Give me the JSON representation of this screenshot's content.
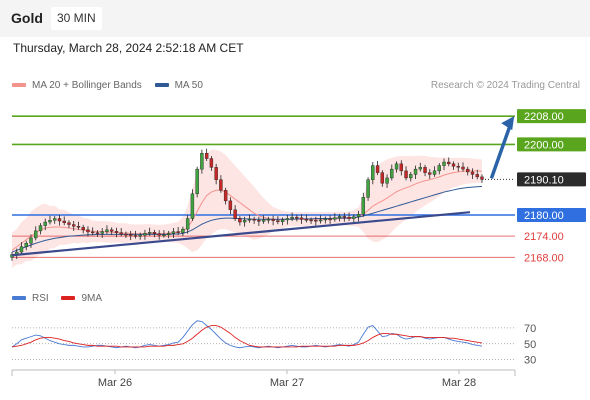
{
  "header": {
    "symbol": "Gold",
    "timeframe": "30 MIN",
    "datetime": "Thursday, March 28, 2024 2:52:18 AM CET"
  },
  "legend": {
    "items": [
      {
        "label": "MA 20 + Bollinger Bands",
        "color": "#f4928c"
      },
      {
        "label": "MA 50",
        "color": "#2f5a96"
      }
    ],
    "credit": "Research © 2024 Trading Central"
  },
  "chart_data": [
    {
      "type": "candlestick",
      "title": "Gold",
      "x_ticks": [
        "Mar 26",
        "Mar 27",
        "Mar 28"
      ],
      "ylim": [
        2163,
        2214
      ],
      "current_price": {
        "value": 2190.1,
        "label": "2190.10"
      },
      "levels": [
        {
          "value": 2208.0,
          "label": "2208.00",
          "color": "#5aa51e",
          "style": "badge"
        },
        {
          "value": 2200.0,
          "label": "2200.00",
          "color": "#5aa51e",
          "style": "badge"
        },
        {
          "value": 2180.0,
          "label": "2180.00",
          "color": "#2f6fe0",
          "style": "badge"
        },
        {
          "value": 2174.0,
          "label": "2174.00",
          "color": "#e04040",
          "style": "text"
        },
        {
          "value": 2168.0,
          "label": "2168.00",
          "color": "#e04040",
          "style": "text"
        }
      ],
      "trendline": {
        "from": {
          "t": 0,
          "y": 2168.6
        },
        "to": {
          "t": 1.0,
          "y": 2180.8
        }
      },
      "forecast_arrow": {
        "from": {
          "t": 1.02,
          "y": 2190.4
        },
        "to": {
          "t": 1.06,
          "y": 2208.0
        }
      },
      "close_series": [
        2168.8,
        2169.5,
        2171.0,
        2172.0,
        2173.5,
        2175.5,
        2177.0,
        2178.0,
        2178.5,
        2179.0,
        2178.3,
        2177.8,
        2177.3,
        2176.8,
        2176.5,
        2175.8,
        2175.2,
        2175.0,
        2174.8,
        2175.3,
        2175.8,
        2175.4,
        2175.0,
        2174.6,
        2174.5,
        2174.2,
        2174.0,
        2174.3,
        2174.8,
        2175.1,
        2174.7,
        2174.3,
        2174.4,
        2174.8,
        2175.3,
        2175.0,
        2176.0,
        2179.0,
        2186.0,
        2193.0,
        2197.5,
        2196.0,
        2193.5,
        2190.0,
        2187.0,
        2184.0,
        2181.5,
        2179.0,
        2178.0,
        2178.5,
        2178.8,
        2178.5,
        2178.2,
        2178.6,
        2178.8,
        2178.4,
        2178.1,
        2178.6,
        2179.0,
        2179.4,
        2179.2,
        2178.8,
        2178.6,
        2178.5,
        2178.3,
        2178.6,
        2178.9,
        2178.8,
        2179.2,
        2179.6,
        2179.4,
        2179.0,
        2179.5,
        2180.2,
        2185.0,
        2190.0,
        2194.0,
        2192.0,
        2189.0,
        2190.5,
        2193.0,
        2194.5,
        2192.5,
        2190.5,
        2191.5,
        2193.0,
        2193.5,
        2192.0,
        2191.5,
        2192.5,
        2194.0,
        2195.0,
        2194.5,
        2193.8,
        2193.6,
        2193.0,
        2192.2,
        2191.5,
        2190.8,
        2190.1
      ],
      "ma20_series": [
        2170.0,
        2171.0,
        2172.0,
        2173.0,
        2174.0,
        2175.0,
        2175.8,
        2176.3,
        2176.5,
        2176.6,
        2176.6,
        2176.5,
        2176.3,
        2176.1,
        2175.9,
        2175.7,
        2175.5,
        2175.4,
        2175.3,
        2175.3,
        2175.2,
        2175.1,
        2175.0,
        2174.9,
        2174.9,
        2174.8,
        2174.7,
        2174.7,
        2174.8,
        2174.8,
        2174.8,
        2174.7,
        2174.8,
        2174.9,
        2175.0,
        2175.1,
        2175.5,
        2176.5,
        2178.5,
        2181.0,
        2183.5,
        2185.5,
        2186.5,
        2187.0,
        2187.0,
        2186.5,
        2185.5,
        2184.5,
        2183.5,
        2182.5,
        2181.5,
        2180.5,
        2179.8,
        2179.3,
        2179.0,
        2178.8,
        2178.7,
        2178.7,
        2178.8,
        2178.8,
        2178.8,
        2178.8,
        2178.8,
        2178.8,
        2178.8,
        2178.8,
        2178.8,
        2178.8,
        2178.9,
        2179.0,
        2179.0,
        2179.0,
        2179.1,
        2179.4,
        2180.2,
        2181.3,
        2182.5,
        2183.3,
        2184.0,
        2184.8,
        2185.7,
        2186.6,
        2187.2,
        2187.7,
        2188.2,
        2188.8,
        2189.3,
        2189.7,
        2190.0,
        2190.4,
        2190.8,
        2191.3,
        2191.7,
        2192.0,
        2192.2,
        2192.4,
        2192.5,
        2192.5,
        2192.5,
        2192.4
      ],
      "ma50_series": [
        2169.5,
        2170.0,
        2170.5,
        2171.0,
        2171.5,
        2172.0,
        2172.4,
        2172.8,
        2173.1,
        2173.4,
        2173.6,
        2173.8,
        2174.0,
        2174.1,
        2174.2,
        2174.3,
        2174.4,
        2174.4,
        2174.5,
        2174.5,
        2174.5,
        2174.5,
        2174.5,
        2174.5,
        2174.5,
        2174.5,
        2174.5,
        2174.5,
        2174.5,
        2174.5,
        2174.5,
        2174.5,
        2174.5,
        2174.5,
        2174.6,
        2174.6,
        2174.8,
        2175.2,
        2175.8,
        2176.6,
        2177.4,
        2178.0,
        2178.5,
        2178.8,
        2179.0,
        2179.1,
        2179.1,
        2179.0,
        2179.0,
        2178.9,
        2178.9,
        2178.8,
        2178.8,
        2178.8,
        2178.8,
        2178.8,
        2178.8,
        2178.8,
        2178.8,
        2178.8,
        2178.9,
        2178.9,
        2178.9,
        2178.9,
        2179.0,
        2179.0,
        2179.0,
        2179.0,
        2179.1,
        2179.1,
        2179.1,
        2179.2,
        2179.3,
        2179.4,
        2179.7,
        2180.1,
        2180.5,
        2180.9,
        2181.3,
        2181.7,
        2182.1,
        2182.5,
        2182.9,
        2183.3,
        2183.7,
        2184.1,
        2184.5,
        2184.9,
        2185.3,
        2185.7,
        2186.1,
        2186.5,
        2186.8,
        2187.1,
        2187.4,
        2187.6,
        2187.8,
        2187.9,
        2188.0,
        2188.1
      ],
      "bb_width_series": [
        5,
        5,
        6,
        6,
        7,
        7,
        7,
        7,
        6,
        6,
        5,
        5,
        4.5,
        4,
        4,
        3.5,
        3.5,
        3,
        3,
        3,
        3,
        3,
        2.8,
        2.8,
        2.8,
        2.6,
        2.6,
        2.6,
        2.6,
        2.6,
        2.5,
        2.5,
        2.5,
        2.6,
        2.8,
        3,
        4,
        6,
        9,
        11,
        12,
        12,
        12,
        11.5,
        11,
        10.5,
        10,
        9.5,
        9,
        8.5,
        8,
        7.5,
        6.5,
        5.5,
        4.5,
        3.5,
        3,
        2.5,
        2.2,
        2,
        2,
        2,
        2,
        2,
        2,
        2,
        2,
        2,
        2,
        2,
        2,
        2,
        2.3,
        2.8,
        5,
        8,
        10,
        11,
        11,
        11,
        10.5,
        10,
        9.5,
        9,
        8.5,
        8,
        7.5,
        7,
        6.5,
        6,
        5.5,
        5,
        4.5,
        4.2,
        4,
        3.8,
        3.6,
        3.5,
        3.4,
        3.3
      ]
    },
    {
      "type": "line",
      "title": "RSI",
      "legend": [
        {
          "name": "RSI",
          "color": "#4a7bd4"
        },
        {
          "name": "9MA",
          "color": "#dd2222"
        }
      ],
      "y_ticks": [
        70,
        50,
        30
      ],
      "ylim": [
        22,
        85
      ],
      "rsi_series": [
        46,
        50,
        55,
        57,
        59,
        61,
        60,
        57,
        54,
        52,
        50,
        49,
        48,
        48,
        47,
        46,
        46,
        47,
        48,
        48,
        47,
        46,
        45,
        46,
        47,
        46,
        45,
        46,
        48,
        49,
        48,
        47,
        48,
        49,
        51,
        52,
        58,
        66,
        74,
        79,
        78,
        73,
        68,
        62,
        56,
        51,
        48,
        46,
        45,
        46,
        47,
        46,
        45,
        46,
        47,
        46,
        45,
        46,
        47,
        48,
        47,
        46,
        46,
        47,
        48,
        47,
        46,
        47,
        48,
        49,
        48,
        47,
        49,
        52,
        62,
        71,
        73,
        66,
        59,
        60,
        63,
        62,
        58,
        56,
        57,
        59,
        59,
        57,
        56,
        57,
        58,
        58,
        56,
        54,
        53,
        52,
        51,
        49,
        48,
        47
      ],
      "ma9_series": [
        46,
        47,
        48,
        50,
        52,
        55,
        57,
        58,
        58,
        57,
        56,
        54,
        53,
        51,
        50,
        49,
        48,
        48,
        47,
        47,
        47,
        47,
        47,
        46,
        46,
        46,
        46,
        46,
        46,
        47,
        47,
        47,
        47,
        48,
        48,
        49,
        50,
        53,
        57,
        62,
        67,
        71,
        73,
        73,
        71,
        67,
        63,
        58,
        54,
        51,
        48,
        47,
        46,
        46,
        46,
        46,
        46,
        46,
        46,
        46,
        46,
        47,
        47,
        47,
        47,
        47,
        47,
        47,
        47,
        48,
        48,
        48,
        48,
        49,
        51,
        54,
        58,
        61,
        63,
        63,
        62,
        62,
        61,
        60,
        59,
        59,
        59,
        58,
        58,
        58,
        58,
        58,
        57,
        57,
        56,
        55,
        54,
        53,
        52,
        51
      ]
    }
  ]
}
